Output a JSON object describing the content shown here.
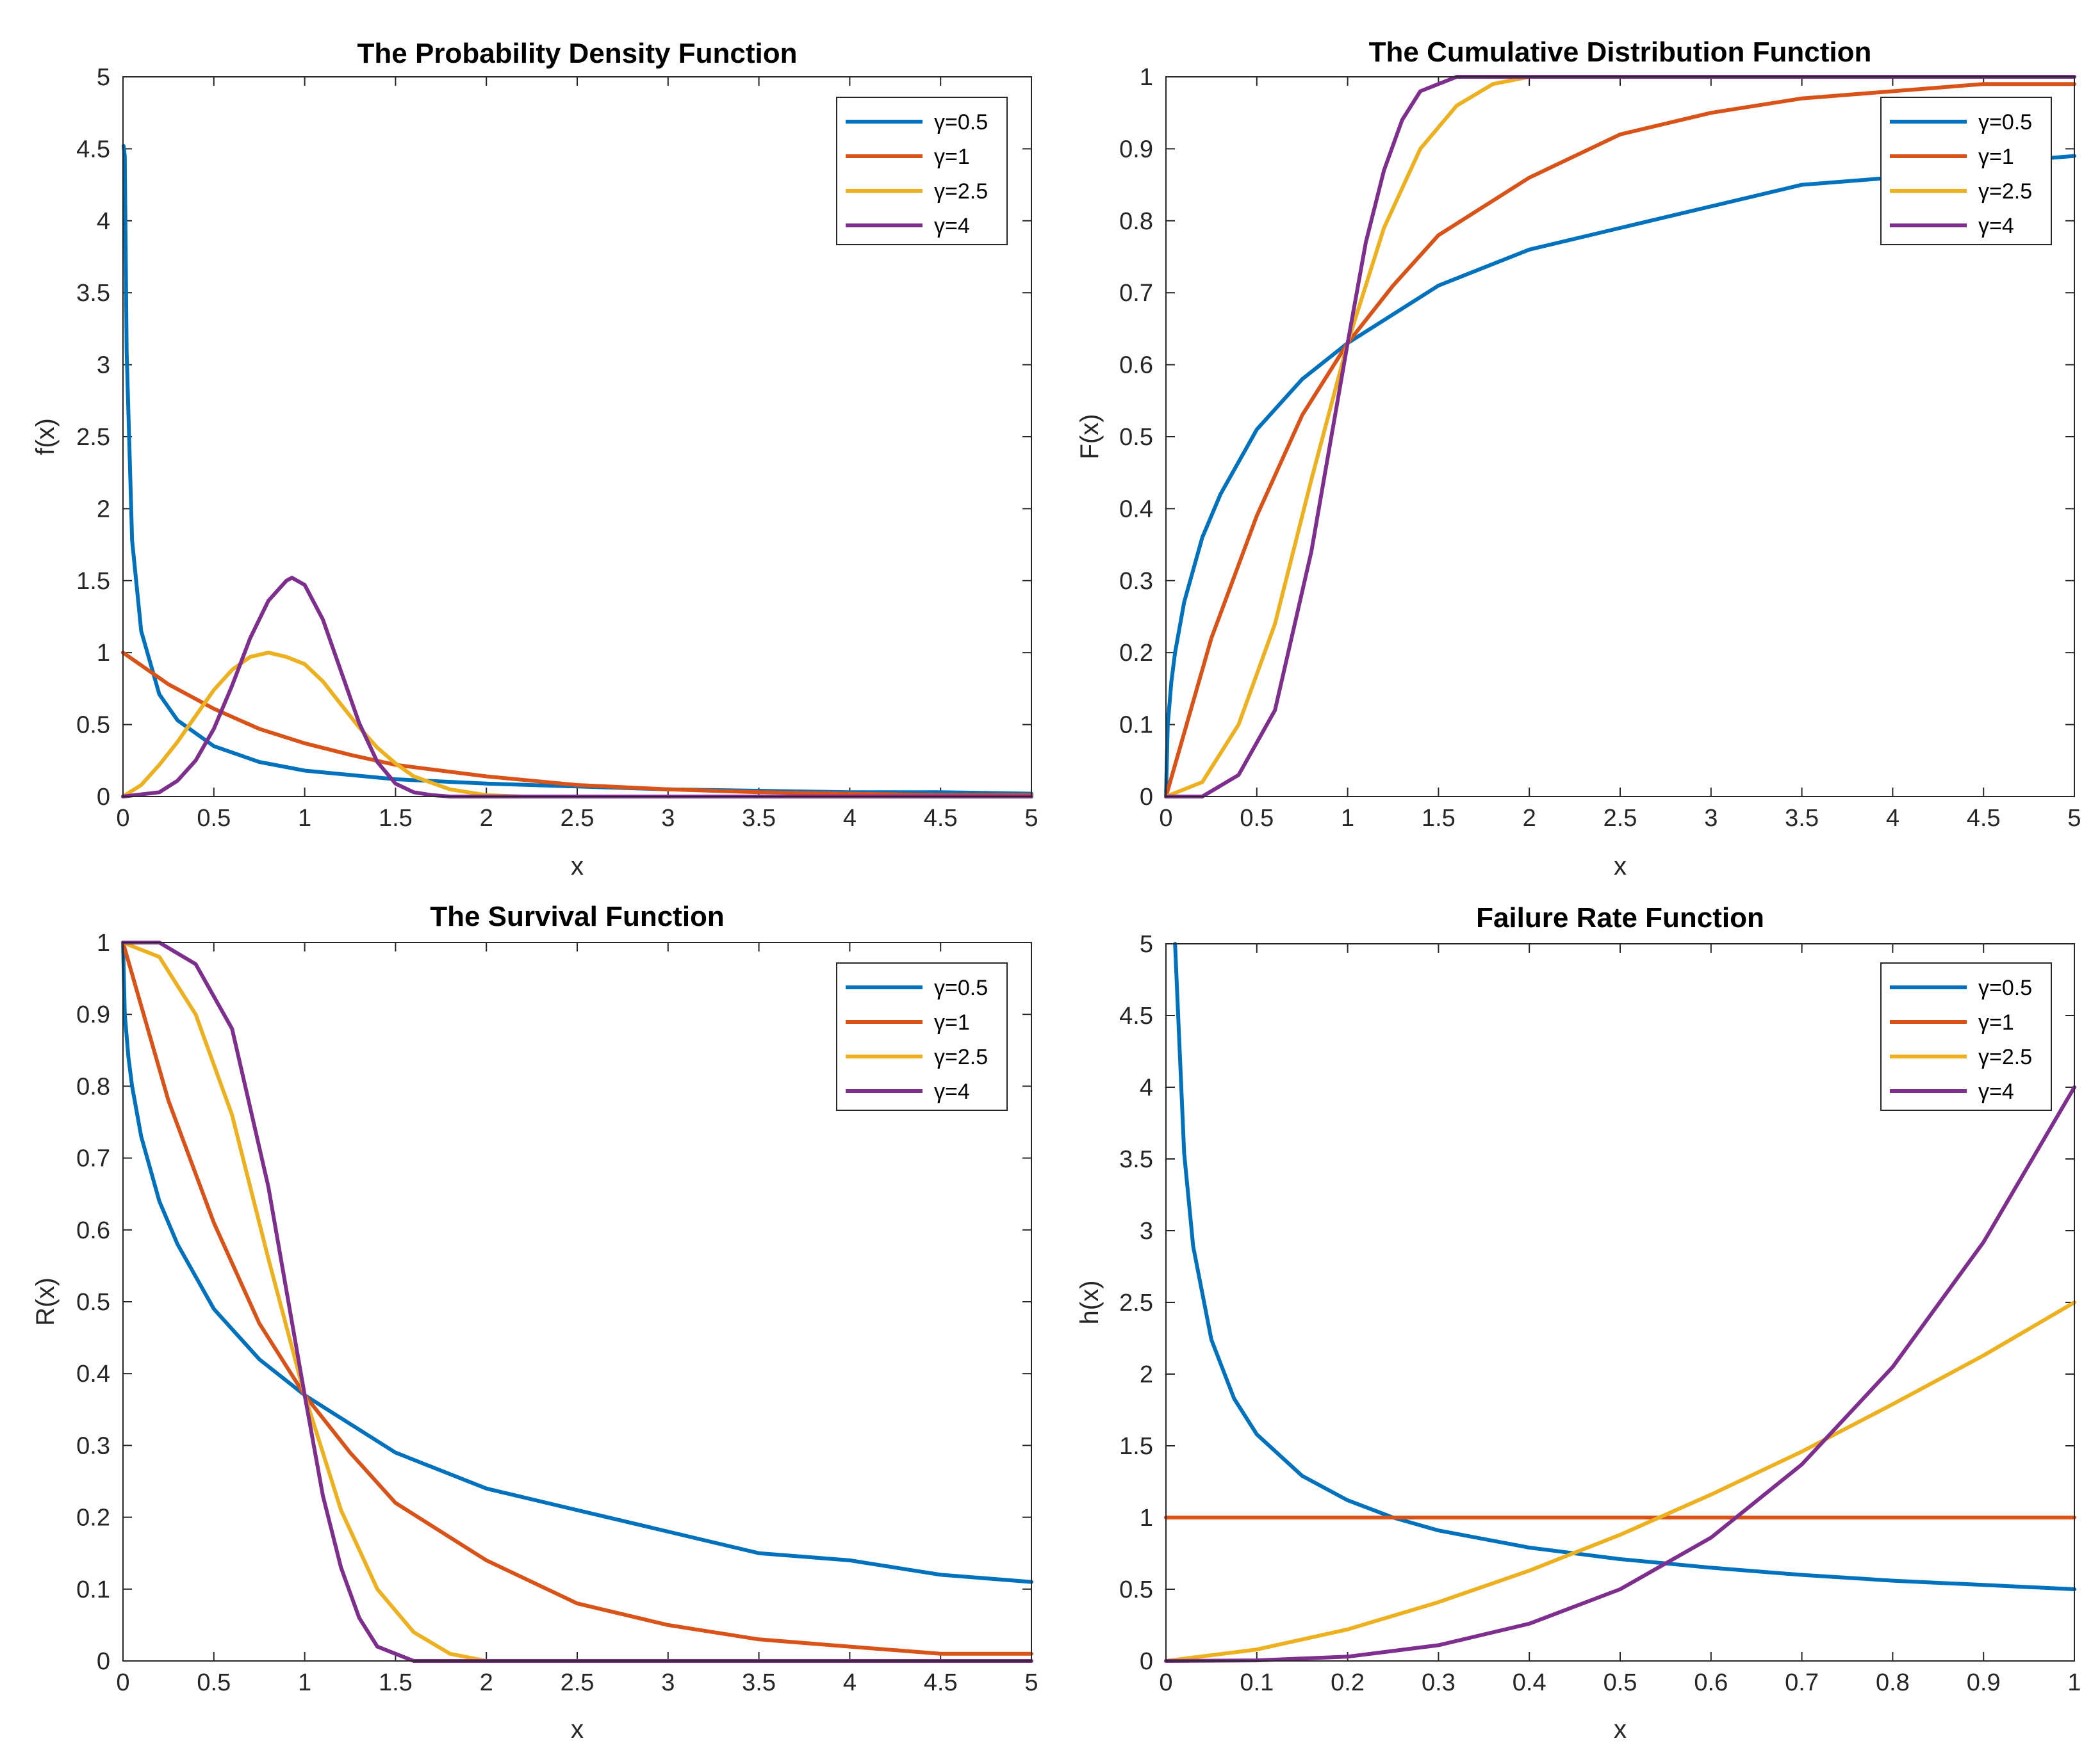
{
  "figure": {
    "background": "#ffffff"
  },
  "series_colors": {
    "gamma_0_5": "#0072BD",
    "gamma_1": "#D95319",
    "gamma_2_5": "#EDB120",
    "gamma_4": "#7E2F8E"
  },
  "chart_data": [
    {
      "id": "pdf",
      "type": "line",
      "title": "The Probability Density Function",
      "xlabel": "x",
      "ylabel": "f(x)",
      "xlim": [
        0,
        5
      ],
      "ylim": [
        0,
        5
      ],
      "xticks": [
        0,
        0.5,
        1,
        1.5,
        2,
        2.5,
        3,
        3.5,
        4,
        4.5,
        5
      ],
      "yticks": [
        0,
        0.5,
        1,
        1.5,
        2,
        2.5,
        3,
        3.5,
        4,
        4.5,
        5
      ],
      "xtick_labels": [
        "0",
        "0.5",
        "1",
        "1.5",
        "2",
        "2.5",
        "3",
        "3.5",
        "4",
        "4.5",
        "5"
      ],
      "ytick_labels": [
        "0",
        "0.5",
        "1",
        "1.5",
        "2",
        "2.5",
        "3",
        "3.5",
        "4",
        "4.5",
        "5"
      ],
      "legend": [
        "γ=0.5",
        "γ=1",
        "γ=2.5",
        "γ=4"
      ],
      "legend_position": "top-right",
      "series": [
        {
          "name": "γ=0.5",
          "color_key": "gamma_0_5",
          "x": [
            0.003,
            0.01,
            0.02,
            0.05,
            0.1,
            0.2,
            0.3,
            0.5,
            0.75,
            1,
            1.5,
            2,
            2.5,
            3,
            3.5,
            4,
            4.5,
            5
          ],
          "y": [
            4.52,
            4.45,
            3.09,
            1.78,
            1.15,
            0.71,
            0.53,
            0.35,
            0.24,
            0.18,
            0.12,
            0.09,
            0.07,
            0.05,
            0.04,
            0.03,
            0.03,
            0.02
          ]
        },
        {
          "name": "γ=1",
          "color_key": "gamma_1",
          "x": [
            0,
            0.25,
            0.5,
            0.75,
            1,
            1.25,
            1.5,
            2,
            2.5,
            3,
            3.5,
            4,
            4.5,
            5
          ],
          "y": [
            1,
            0.78,
            0.61,
            0.47,
            0.37,
            0.29,
            0.22,
            0.14,
            0.08,
            0.05,
            0.03,
            0.02,
            0.01,
            0.01
          ]
        },
        {
          "name": "γ=2.5",
          "color_key": "gamma_2_5",
          "x": [
            0,
            0.1,
            0.2,
            0.3,
            0.4,
            0.5,
            0.6,
            0.7,
            0.8,
            0.9,
            1,
            1.1,
            1.2,
            1.3,
            1.4,
            1.5,
            1.6,
            1.8,
            2,
            2.2,
            2.5,
            3,
            5
          ],
          "y": [
            0,
            0.08,
            0.22,
            0.38,
            0.56,
            0.74,
            0.88,
            0.97,
            1.0,
            0.97,
            0.92,
            0.8,
            0.64,
            0.48,
            0.34,
            0.23,
            0.14,
            0.05,
            0.01,
            0.0,
            0.0,
            0.0,
            0.0
          ]
        },
        {
          "name": "γ=4",
          "color_key": "gamma_4",
          "x": [
            0,
            0.2,
            0.3,
            0.4,
            0.5,
            0.6,
            0.7,
            0.8,
            0.9,
            0.93,
            1,
            1.1,
            1.2,
            1.3,
            1.4,
            1.5,
            1.6,
            1.7,
            1.8,
            2,
            5
          ],
          "y": [
            0,
            0.03,
            0.11,
            0.25,
            0.47,
            0.77,
            1.1,
            1.36,
            1.5,
            1.52,
            1.47,
            1.23,
            0.87,
            0.51,
            0.24,
            0.09,
            0.03,
            0.01,
            0.0,
            0.0,
            0.0
          ]
        }
      ]
    },
    {
      "id": "cdf",
      "type": "line",
      "title": "The Cumulative Distribution Function",
      "xlabel": "x",
      "ylabel": "F(x)",
      "xlim": [
        0,
        5
      ],
      "ylim": [
        0,
        1
      ],
      "xticks": [
        0,
        0.5,
        1,
        1.5,
        2,
        2.5,
        3,
        3.5,
        4,
        4.5,
        5
      ],
      "yticks": [
        0,
        0.1,
        0.2,
        0.3,
        0.4,
        0.5,
        0.6,
        0.7,
        0.8,
        0.9,
        1
      ],
      "xtick_labels": [
        "0",
        "0.5",
        "1",
        "1.5",
        "2",
        "2.5",
        "3",
        "3.5",
        "4",
        "4.5",
        "5"
      ],
      "ytick_labels": [
        "0",
        "0.1",
        "0.2",
        "0.3",
        "0.4",
        "0.5",
        "0.6",
        "0.7",
        "0.8",
        "0.9",
        "1"
      ],
      "legend": [
        "γ=0.5",
        "γ=1",
        "γ=2.5",
        "γ=4"
      ],
      "legend_position": "top-right",
      "series": [
        {
          "name": "γ=0.5",
          "color_key": "gamma_0_5",
          "x": [
            0,
            0.01,
            0.03,
            0.05,
            0.1,
            0.2,
            0.3,
            0.5,
            0.75,
            1,
            1.5,
            2,
            2.5,
            3,
            3.5,
            4,
            4.5,
            5
          ],
          "y": [
            0,
            0.1,
            0.16,
            0.2,
            0.27,
            0.36,
            0.42,
            0.51,
            0.58,
            0.63,
            0.71,
            0.76,
            0.79,
            0.82,
            0.85,
            0.86,
            0.88,
            0.89
          ]
        },
        {
          "name": "γ=1",
          "color_key": "gamma_1",
          "x": [
            0,
            0.25,
            0.5,
            0.75,
            1,
            1.25,
            1.5,
            2,
            2.5,
            3,
            3.5,
            4,
            4.5,
            5
          ],
          "y": [
            0,
            0.22,
            0.39,
            0.53,
            0.63,
            0.71,
            0.78,
            0.86,
            0.92,
            0.95,
            0.97,
            0.98,
            0.99,
            0.99
          ]
        },
        {
          "name": "γ=2.5",
          "color_key": "gamma_2_5",
          "x": [
            0,
            0.2,
            0.4,
            0.6,
            0.8,
            1,
            1.2,
            1.4,
            1.6,
            1.8,
            2,
            2.5,
            5
          ],
          "y": [
            0,
            0.02,
            0.1,
            0.24,
            0.44,
            0.63,
            0.79,
            0.9,
            0.96,
            0.99,
            1.0,
            1.0,
            1.0
          ]
        },
        {
          "name": "γ=4",
          "color_key": "gamma_4",
          "x": [
            0,
            0.2,
            0.4,
            0.6,
            0.8,
            1,
            1.1,
            1.2,
            1.3,
            1.4,
            1.5,
            1.6,
            2,
            5
          ],
          "y": [
            0,
            0.0,
            0.03,
            0.12,
            0.34,
            0.63,
            0.77,
            0.87,
            0.94,
            0.98,
            0.99,
            1.0,
            1.0,
            1.0
          ]
        }
      ]
    },
    {
      "id": "survival",
      "type": "line",
      "title": "The Survival Function",
      "xlabel": "x",
      "ylabel": "R(x)",
      "xlim": [
        0,
        5
      ],
      "ylim": [
        0,
        1
      ],
      "xticks": [
        0,
        0.5,
        1,
        1.5,
        2,
        2.5,
        3,
        3.5,
        4,
        4.5,
        5
      ],
      "yticks": [
        0,
        0.1,
        0.2,
        0.3,
        0.4,
        0.5,
        0.6,
        0.7,
        0.8,
        0.9,
        1
      ],
      "xtick_labels": [
        "0",
        "0.5",
        "1",
        "1.5",
        "2",
        "2.5",
        "3",
        "3.5",
        "4",
        "4.5",
        "5"
      ],
      "ytick_labels": [
        "0",
        "0.1",
        "0.2",
        "0.3",
        "0.4",
        "0.5",
        "0.6",
        "0.7",
        "0.8",
        "0.9",
        "1"
      ],
      "legend": [
        "γ=0.5",
        "γ=1",
        "γ=2.5",
        "γ=4"
      ],
      "legend_position": "top-right",
      "series": [
        {
          "name": "γ=0.5",
          "color_key": "gamma_0_5",
          "x": [
            0,
            0.01,
            0.03,
            0.05,
            0.1,
            0.2,
            0.3,
            0.5,
            0.75,
            1,
            1.5,
            2,
            2.5,
            3,
            3.5,
            4,
            4.5,
            5
          ],
          "y": [
            1,
            0.9,
            0.84,
            0.8,
            0.73,
            0.64,
            0.58,
            0.49,
            0.42,
            0.37,
            0.29,
            0.24,
            0.21,
            0.18,
            0.15,
            0.14,
            0.12,
            0.11
          ]
        },
        {
          "name": "γ=1",
          "color_key": "gamma_1",
          "x": [
            0,
            0.25,
            0.5,
            0.75,
            1,
            1.25,
            1.5,
            2,
            2.5,
            3,
            3.5,
            4,
            4.5,
            5
          ],
          "y": [
            1,
            0.78,
            0.61,
            0.47,
            0.37,
            0.29,
            0.22,
            0.14,
            0.08,
            0.05,
            0.03,
            0.02,
            0.01,
            0.01
          ]
        },
        {
          "name": "γ=2.5",
          "color_key": "gamma_2_5",
          "x": [
            0,
            0.2,
            0.4,
            0.6,
            0.8,
            1,
            1.2,
            1.4,
            1.6,
            1.8,
            2,
            2.5,
            5
          ],
          "y": [
            1,
            0.98,
            0.9,
            0.76,
            0.56,
            0.37,
            0.21,
            0.1,
            0.04,
            0.01,
            0.0,
            0.0,
            0.0
          ]
        },
        {
          "name": "γ=4",
          "color_key": "gamma_4",
          "x": [
            0,
            0.2,
            0.4,
            0.6,
            0.8,
            1,
            1.1,
            1.2,
            1.3,
            1.4,
            1.5,
            1.6,
            2,
            5
          ],
          "y": [
            1,
            1.0,
            0.97,
            0.88,
            0.66,
            0.37,
            0.23,
            0.13,
            0.06,
            0.02,
            0.01,
            0.0,
            0.0,
            0.0
          ]
        }
      ]
    },
    {
      "id": "hazard",
      "type": "line",
      "title": "Failure Rate Function",
      "xlabel": "x",
      "ylabel": "h(x)",
      "xlim": [
        0,
        1
      ],
      "ylim": [
        0,
        5
      ],
      "xticks": [
        0,
        0.1,
        0.2,
        0.3,
        0.4,
        0.5,
        0.6,
        0.7,
        0.8,
        0.9,
        1
      ],
      "yticks": [
        0,
        0.5,
        1,
        1.5,
        2,
        2.5,
        3,
        3.5,
        4,
        4.5,
        5
      ],
      "xtick_labels": [
        "0",
        "0.1",
        "0.2",
        "0.3",
        "0.4",
        "0.5",
        "0.6",
        "0.7",
        "0.8",
        "0.9",
        "1"
      ],
      "ytick_labels": [
        "0",
        "0.5",
        "1",
        "1.5",
        "2",
        "2.5",
        "3",
        "3.5",
        "4",
        "4.5",
        "5"
      ],
      "legend": [
        "γ=0.5",
        "γ=1",
        "γ=2.5",
        "γ=4"
      ],
      "legend_position": "top-right",
      "series": [
        {
          "name": "γ=0.5",
          "color_key": "gamma_0_5",
          "x": [
            0.01,
            0.02,
            0.03,
            0.05,
            0.075,
            0.1,
            0.15,
            0.2,
            0.25,
            0.3,
            0.4,
            0.5,
            0.6,
            0.7,
            0.8,
            0.9,
            1
          ],
          "y": [
            5.0,
            3.54,
            2.89,
            2.24,
            1.83,
            1.58,
            1.29,
            1.12,
            1.0,
            0.91,
            0.79,
            0.71,
            0.65,
            0.6,
            0.56,
            0.53,
            0.5
          ]
        },
        {
          "name": "γ=1",
          "color_key": "gamma_1",
          "x": [
            0,
            1
          ],
          "y": [
            1,
            1
          ]
        },
        {
          "name": "γ=2.5",
          "color_key": "gamma_2_5",
          "x": [
            0,
            0.1,
            0.2,
            0.3,
            0.4,
            0.5,
            0.6,
            0.7,
            0.8,
            0.9,
            1
          ],
          "y": [
            0,
            0.08,
            0.22,
            0.41,
            0.63,
            0.88,
            1.16,
            1.46,
            1.79,
            2.13,
            2.5
          ]
        },
        {
          "name": "γ=4",
          "color_key": "gamma_4",
          "x": [
            0,
            0.1,
            0.2,
            0.3,
            0.4,
            0.5,
            0.6,
            0.7,
            0.8,
            0.9,
            1
          ],
          "y": [
            0,
            0.004,
            0.03,
            0.11,
            0.26,
            0.5,
            0.86,
            1.37,
            2.05,
            2.92,
            4.0
          ]
        }
      ]
    }
  ]
}
